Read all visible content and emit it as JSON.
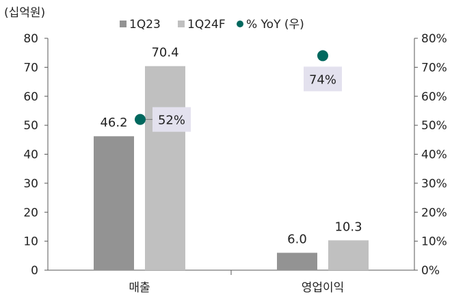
{
  "unit_label": "(십억원)",
  "colors": {
    "series_1q23": "#939393",
    "series_1q24f": "#c0c0c0",
    "yoy_marker": "#00685e",
    "callout_bg": "#e3e1ee",
    "axis": "#555555"
  },
  "legend": {
    "items": [
      {
        "label": "1Q23",
        "shape": "square",
        "color": "#939393"
      },
      {
        "label": "1Q24F",
        "shape": "square",
        "color": "#c0c0c0"
      },
      {
        "label": "% YoY (우)",
        "shape": "circle",
        "color": "#00685e"
      }
    ]
  },
  "chart_data": {
    "type": "bar",
    "categories": [
      "매출",
      "영업이익"
    ],
    "series": [
      {
        "name": "1Q23",
        "values": [
          46.2,
          6.0
        ],
        "labels": [
          "46.2",
          "6.0"
        ]
      },
      {
        "name": "1Q24F",
        "values": [
          70.4,
          10.3
        ],
        "labels": [
          "70.4",
          "10.3"
        ]
      }
    ],
    "secondary_series": {
      "name": "% YoY (우)",
      "type": "scatter",
      "values": [
        52,
        74
      ],
      "labels": [
        "52%",
        "74%"
      ]
    },
    "ylim": [
      0,
      80
    ],
    "y_ticks": [
      "0",
      "10",
      "20",
      "30",
      "40",
      "50",
      "60",
      "70",
      "80"
    ],
    "y2lim": [
      0,
      80
    ],
    "y2_ticks": [
      "0%",
      "10%",
      "20%",
      "30%",
      "40%",
      "50%",
      "60%",
      "70%",
      "80%"
    ],
    "grid": false,
    "legend_position": "top"
  }
}
